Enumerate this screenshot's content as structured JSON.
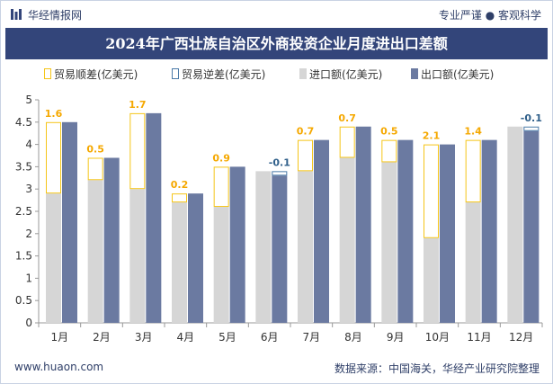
{
  "header": {
    "brand": "华经情报网",
    "slogan": "专业严谨 ● 客观科学"
  },
  "footer": {
    "website": "www.huaon.com",
    "source": "数据来源：中国海关，华经产业研究院整理"
  },
  "chart_data": {
    "type": "bar",
    "title": "2024年广西壮族自治区外商投资企业月度进出口差额",
    "categories": [
      "1月",
      "2月",
      "3月",
      "4月",
      "5月",
      "6月",
      "7月",
      "8月",
      "9月",
      "10月",
      "11月",
      "12月"
    ],
    "series": [
      {
        "name": "贸易顺差(亿美元)",
        "values": [
          1.6,
          0.5,
          1.7,
          0.2,
          0.9,
          null,
          0.7,
          0.7,
          0.5,
          2.1,
          1.4,
          null
        ]
      },
      {
        "name": "贸易逆差(亿美元)",
        "values": [
          null,
          null,
          null,
          null,
          null,
          -0.1,
          null,
          null,
          null,
          null,
          null,
          -0.1
        ]
      },
      {
        "name": "进口额(亿美元)",
        "values": [
          2.9,
          3.2,
          3.0,
          2.7,
          2.6,
          3.4,
          3.4,
          3.7,
          3.6,
          1.9,
          2.7,
          4.4
        ]
      },
      {
        "name": "出口额(亿美元)",
        "values": [
          4.5,
          3.7,
          4.7,
          2.9,
          3.5,
          3.3,
          4.1,
          4.4,
          4.1,
          4.0,
          4.1,
          4.3
        ]
      }
    ],
    "ylim": [
      0,
      5
    ],
    "yticks": [
      "0",
      "0.5",
      "1",
      "1.5",
      "2",
      "2.5",
      "3",
      "3.5",
      "4",
      "4.5",
      "5"
    ],
    "grid": false,
    "legend_position": "top",
    "colors": {
      "surplus": "#f5c518",
      "deficit": "#4a7aa8",
      "import": "#d6d6d6",
      "export": "#6b7aa1",
      "surplus_label": "#f5a800",
      "deficit_label": "#2f5f8a"
    }
  }
}
